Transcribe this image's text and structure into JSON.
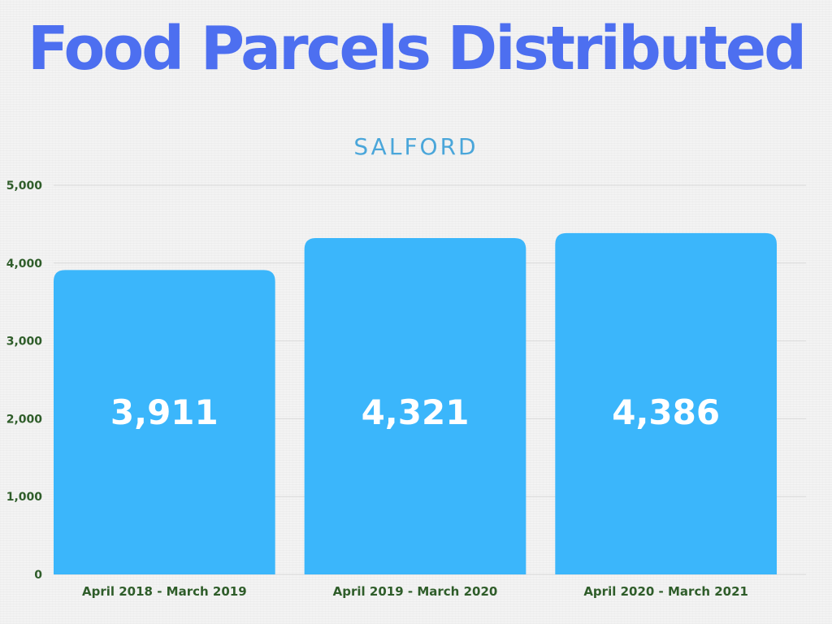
{
  "title": "Food Parcels Distributed",
  "subtitle": "SALFORD",
  "colors": {
    "title": "#4d6ff0",
    "subtitle": "#4aa6da",
    "bar": "#3bb6fb",
    "axis_text": "#2f5d2a",
    "grid": "#d9d9d9",
    "bar_label": "#ffffff"
  },
  "chart_data": {
    "type": "bar",
    "title": "Food Parcels Distributed",
    "subtitle": "SALFORD",
    "categories": [
      "April 2018 - March 2019",
      "April 2019 - March 2020",
      "April 2020 - March 2021"
    ],
    "values": [
      3911,
      4321,
      4386
    ],
    "data_labels": [
      "3,911",
      "4,321",
      "4,386"
    ],
    "ylim": [
      0,
      5000
    ],
    "yticks": [
      0,
      1000,
      2000,
      3000,
      4000,
      5000
    ],
    "ytick_labels": [
      "0",
      "1,000",
      "2,000",
      "3,000",
      "4,000",
      "5,000"
    ],
    "grid": true,
    "legend": "none"
  }
}
